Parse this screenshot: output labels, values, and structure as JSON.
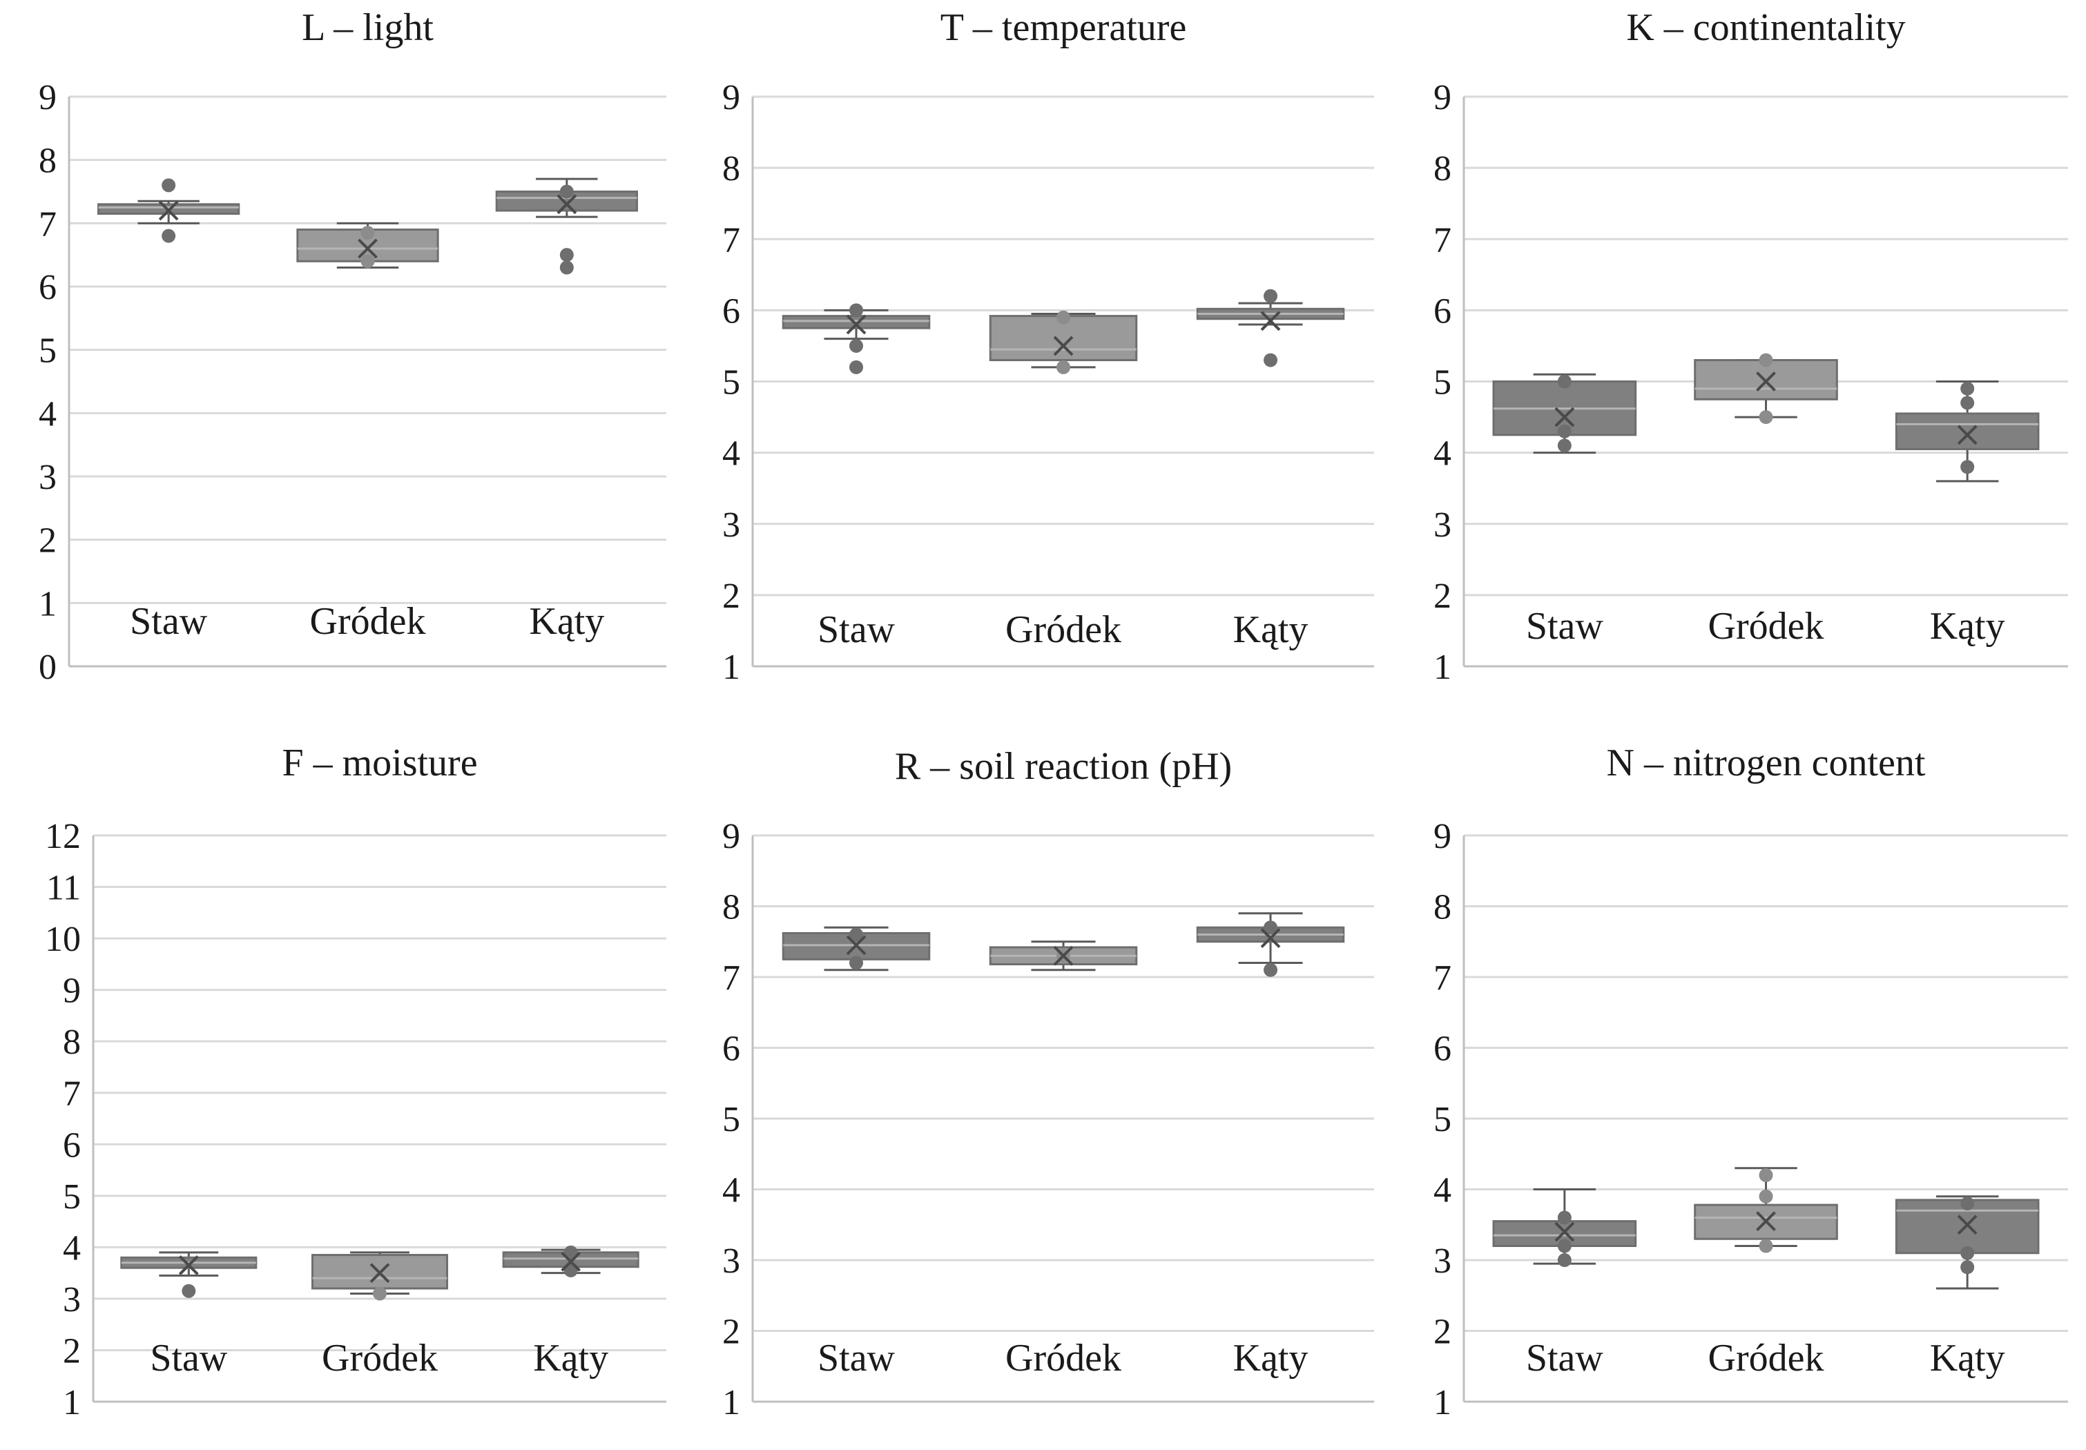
{
  "chart_data": [
    {
      "type": "box",
      "title": "L – light",
      "ylim": [
        0,
        9
      ],
      "yticks": [
        0,
        1,
        2,
        3,
        4,
        5,
        6,
        7,
        8,
        9
      ],
      "grid": true,
      "categories": [
        "Staw",
        "Gródek",
        "Kąty"
      ],
      "boxes": [
        {
          "min": 7.0,
          "q1": 7.15,
          "median": 7.25,
          "q3": 7.3,
          "max": 7.35,
          "mean": 7.2,
          "outliers": [
            7.6,
            6.8
          ],
          "color": "#808080"
        },
        {
          "min": 6.3,
          "q1": 6.4,
          "median": 6.6,
          "q3": 6.9,
          "max": 7.0,
          "mean": 6.6,
          "outliers": [
            6.4,
            6.85
          ],
          "color": "#9a9a9a"
        },
        {
          "min": 7.1,
          "q1": 7.2,
          "median": 7.4,
          "q3": 7.5,
          "max": 7.7,
          "mean": 7.3,
          "outliers": [
            7.5,
            6.5,
            6.3
          ],
          "color": "#808080"
        }
      ]
    },
    {
      "type": "box",
      "title": "T – temperature",
      "ylim": [
        1,
        9
      ],
      "yticks": [
        1,
        2,
        3,
        4,
        5,
        6,
        7,
        8,
        9
      ],
      "grid": true,
      "categories": [
        "Staw",
        "Gródek",
        "Kąty"
      ],
      "boxes": [
        {
          "min": 5.6,
          "q1": 5.75,
          "median": 5.85,
          "q3": 5.92,
          "max": 6.0,
          "mean": 5.8,
          "outliers": [
            6.0,
            5.5,
            5.2
          ],
          "color": "#808080"
        },
        {
          "min": 5.2,
          "q1": 5.3,
          "median": 5.45,
          "q3": 5.92,
          "max": 5.95,
          "mean": 5.5,
          "outliers": [
            5.9,
            5.2
          ],
          "color": "#9a9a9a"
        },
        {
          "min": 5.8,
          "q1": 5.88,
          "median": 5.95,
          "q3": 6.02,
          "max": 6.1,
          "mean": 5.85,
          "outliers": [
            6.2,
            5.3
          ],
          "color": "#808080"
        }
      ]
    },
    {
      "type": "box",
      "title": "K – continentality",
      "ylim": [
        1,
        9
      ],
      "yticks": [
        1,
        2,
        3,
        4,
        5,
        6,
        7,
        8,
        9
      ],
      "grid": true,
      "categories": [
        "Staw",
        "Gródek",
        "Kąty"
      ],
      "boxes": [
        {
          "min": 4.0,
          "q1": 4.25,
          "median": 4.62,
          "q3": 5.0,
          "max": 5.1,
          "mean": 4.5,
          "outliers": [
            5.0,
            4.3,
            4.1
          ],
          "color": "#808080"
        },
        {
          "min": 4.5,
          "q1": 4.75,
          "median": 4.9,
          "q3": 5.3,
          "max": 5.3,
          "mean": 5.0,
          "outliers": [
            5.3,
            4.5
          ],
          "color": "#9a9a9a"
        },
        {
          "min": 3.6,
          "q1": 4.05,
          "median": 4.4,
          "q3": 4.55,
          "max": 5.0,
          "mean": 4.25,
          "outliers": [
            4.9,
            4.7,
            3.8
          ],
          "color": "#808080"
        }
      ]
    },
    {
      "type": "box",
      "title": "F – moisture",
      "ylim": [
        1,
        12
      ],
      "yticks": [
        1,
        2,
        3,
        4,
        5,
        6,
        7,
        8,
        9,
        10,
        11,
        12
      ],
      "grid": true,
      "categories": [
        "Staw",
        "Gródek",
        "Kąty"
      ],
      "boxes": [
        {
          "min": 3.45,
          "q1": 3.6,
          "median": 3.7,
          "q3": 3.8,
          "max": 3.9,
          "mean": 3.65,
          "outliers": [
            3.15
          ],
          "color": "#808080"
        },
        {
          "min": 3.1,
          "q1": 3.2,
          "median": 3.4,
          "q3": 3.85,
          "max": 3.9,
          "mean": 3.5,
          "outliers": [
            3.1
          ],
          "color": "#9a9a9a"
        },
        {
          "min": 3.5,
          "q1": 3.62,
          "median": 3.78,
          "q3": 3.9,
          "max": 3.95,
          "mean": 3.72,
          "outliers": [
            3.55,
            3.9
          ],
          "color": "#808080"
        }
      ]
    },
    {
      "type": "box",
      "title": "R – soil reaction (pH)",
      "ylim": [
        1,
        9
      ],
      "yticks": [
        1,
        2,
        3,
        4,
        5,
        6,
        7,
        8,
        9
      ],
      "grid": true,
      "categories": [
        "Staw",
        "Gródek",
        "Kąty"
      ],
      "boxes": [
        {
          "min": 7.1,
          "q1": 7.25,
          "median": 7.45,
          "q3": 7.62,
          "max": 7.7,
          "mean": 7.45,
          "outliers": [
            7.6,
            7.2
          ],
          "color": "#808080"
        },
        {
          "min": 7.1,
          "q1": 7.18,
          "median": 7.3,
          "q3": 7.42,
          "max": 7.5,
          "mean": 7.3,
          "outliers": [
            7.3
          ],
          "color": "#9a9a9a"
        },
        {
          "min": 7.2,
          "q1": 7.5,
          "median": 7.6,
          "q3": 7.7,
          "max": 7.9,
          "mean": 7.55,
          "outliers": [
            7.7,
            7.1
          ],
          "color": "#808080"
        }
      ]
    },
    {
      "type": "box",
      "title": "N – nitrogen content",
      "ylim": [
        1,
        9
      ],
      "yticks": [
        1,
        2,
        3,
        4,
        5,
        6,
        7,
        8,
        9
      ],
      "grid": true,
      "categories": [
        "Staw",
        "Gródek",
        "Kąty"
      ],
      "boxes": [
        {
          "min": 2.95,
          "q1": 3.2,
          "median": 3.35,
          "q3": 3.55,
          "max": 4.0,
          "mean": 3.4,
          "outliers": [
            3.6,
            3.2,
            3.0
          ],
          "color": "#808080"
        },
        {
          "min": 3.2,
          "q1": 3.3,
          "median": 3.6,
          "q3": 3.78,
          "max": 4.3,
          "mean": 3.55,
          "outliers": [
            4.2,
            3.9,
            3.2
          ],
          "color": "#9a9a9a"
        },
        {
          "min": 2.6,
          "q1": 3.1,
          "median": 3.7,
          "q3": 3.85,
          "max": 3.9,
          "mean": 3.5,
          "outliers": [
            3.8,
            3.1,
            2.9
          ],
          "color": "#808080"
        }
      ]
    }
  ]
}
